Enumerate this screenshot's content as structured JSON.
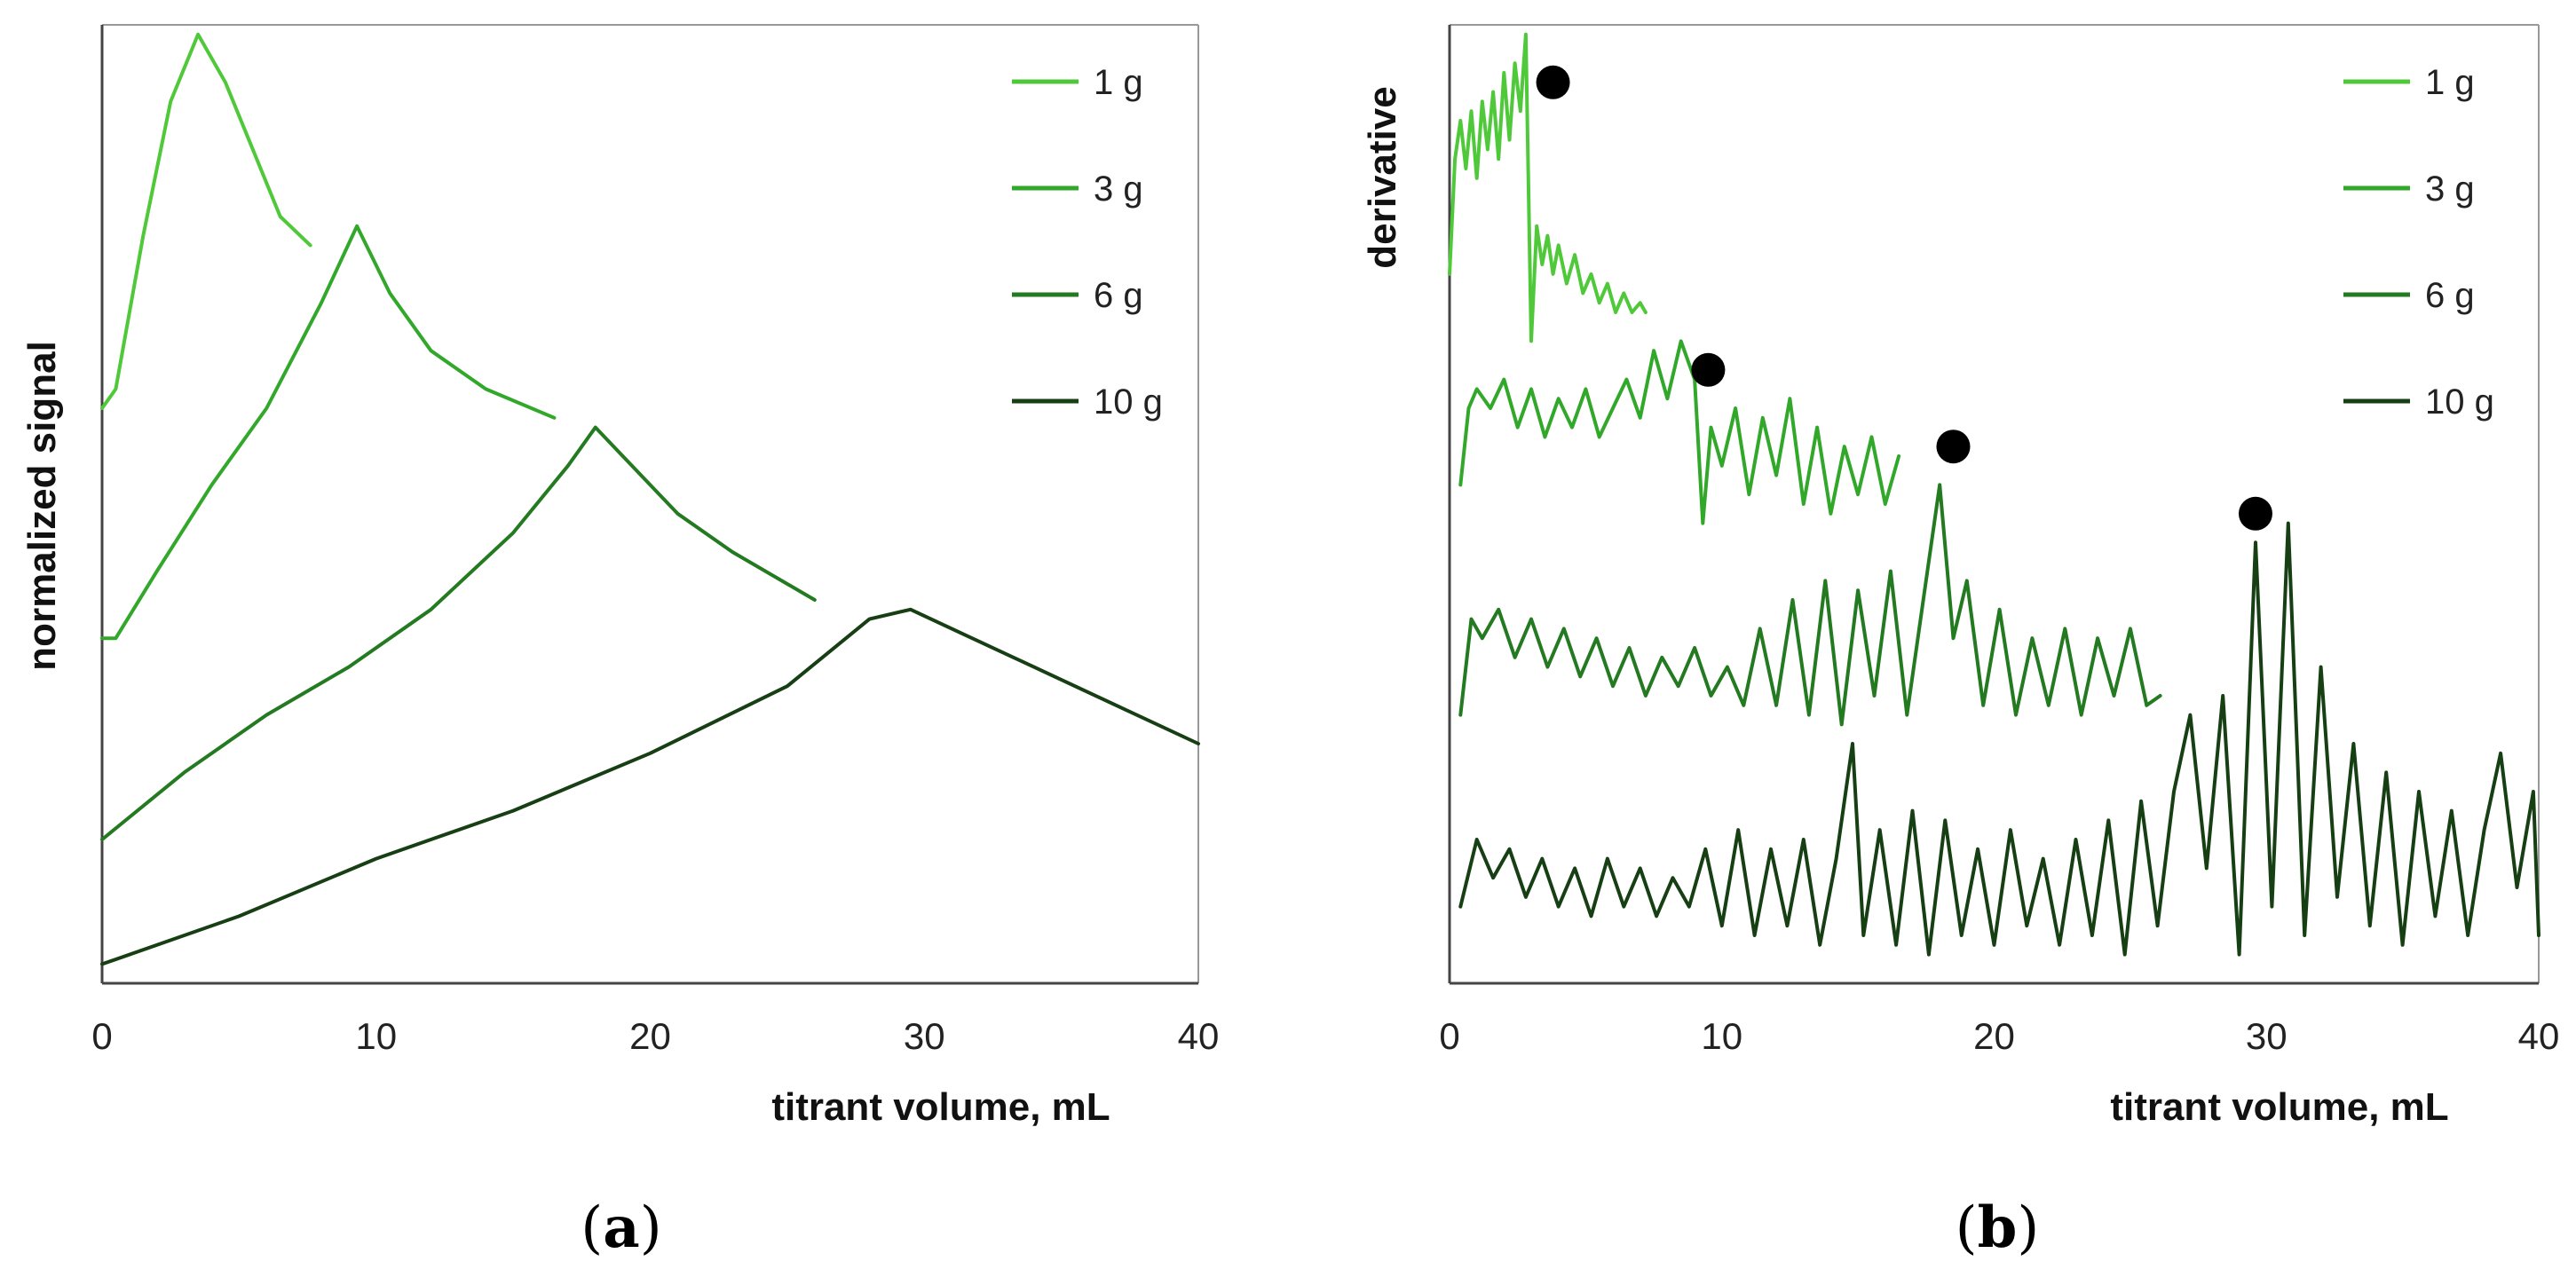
{
  "colors": {
    "1 g": "#4fc93a",
    "3 g": "#32a82a",
    "6 g": "#237a20",
    "10 g": "#173f14"
  },
  "chart_data": [
    {
      "panel": "a",
      "caption_letter": "a",
      "type": "line",
      "title": "",
      "xlabel": "titrant volume, mL",
      "ylabel": "normalized signal",
      "xlim": [
        0,
        40
      ],
      "ylim": [
        0,
        1
      ],
      "xticks": [
        0,
        10,
        20,
        30,
        40
      ],
      "yticks": [],
      "legend": [
        "1 g",
        "3 g",
        "6 g",
        "10 g"
      ],
      "legend_position": "top-right",
      "series": [
        {
          "name": "1 g",
          "x": [
            0,
            0.5,
            1.5,
            2.5,
            3.5,
            4.5,
            5.5,
            6.5,
            7.6
          ],
          "y": [
            0.6,
            0.62,
            0.78,
            0.92,
            0.99,
            0.94,
            0.87,
            0.8,
            0.77
          ]
        },
        {
          "name": "3 g",
          "x": [
            0,
            0.5,
            2,
            4,
            6,
            8,
            9.3,
            10.5,
            12,
            14,
            16.5
          ],
          "y": [
            0.36,
            0.36,
            0.43,
            0.52,
            0.6,
            0.71,
            0.79,
            0.72,
            0.66,
            0.62,
            0.59
          ]
        },
        {
          "name": "6 g",
          "x": [
            0,
            3,
            6,
            9,
            12,
            15,
            17,
            18,
            19,
            21,
            23,
            26
          ],
          "y": [
            0.15,
            0.22,
            0.28,
            0.33,
            0.39,
            0.47,
            0.54,
            0.58,
            0.55,
            0.49,
            0.45,
            0.4
          ]
        },
        {
          "name": "10 g",
          "x": [
            0,
            5,
            10,
            15,
            20,
            25,
            28,
            29.5,
            31,
            34,
            37,
            40
          ],
          "y": [
            0.02,
            0.07,
            0.13,
            0.18,
            0.24,
            0.31,
            0.38,
            0.39,
            0.37,
            0.33,
            0.29,
            0.25
          ]
        }
      ]
    },
    {
      "panel": "b",
      "caption_letter": "b",
      "type": "line",
      "title": "",
      "xlabel": "titrant volume, mL",
      "ylabel": "derivative",
      "xlim": [
        0,
        40
      ],
      "ylim": [
        0,
        1
      ],
      "xticks": [
        0,
        10,
        20,
        30,
        40
      ],
      "yticks": [],
      "legend": [
        "1 g",
        "3 g",
        "6 g",
        "10 g"
      ],
      "legend_position": "top-right",
      "series": [
        {
          "name": "1 g",
          "x": [
            0,
            0.2,
            0.4,
            0.6,
            0.8,
            1.0,
            1.2,
            1.4,
            1.6,
            1.8,
            2.0,
            2.2,
            2.4,
            2.6,
            2.8,
            3.0,
            3.2,
            3.4,
            3.6,
            3.8,
            4.0,
            4.3,
            4.6,
            4.9,
            5.2,
            5.5,
            5.8,
            6.1,
            6.4,
            6.7,
            7.0,
            7.2
          ],
          "y": [
            0.74,
            0.86,
            0.9,
            0.85,
            0.91,
            0.84,
            0.92,
            0.87,
            0.93,
            0.86,
            0.95,
            0.88,
            0.96,
            0.91,
            0.99,
            0.67,
            0.79,
            0.75,
            0.78,
            0.74,
            0.77,
            0.73,
            0.76,
            0.72,
            0.74,
            0.71,
            0.73,
            0.7,
            0.72,
            0.7,
            0.71,
            0.7
          ]
        },
        {
          "name": "3 g",
          "x": [
            0.4,
            0.7,
            1.0,
            1.5,
            2.0,
            2.5,
            3.0,
            3.5,
            4.0,
            4.5,
            5.0,
            5.5,
            6.0,
            6.5,
            7.0,
            7.5,
            8.0,
            8.5,
            9.0,
            9.3,
            9.6,
            10.0,
            10.5,
            11.0,
            11.5,
            12.0,
            12.5,
            13.0,
            13.5,
            14.0,
            14.5,
            15.0,
            15.5,
            16.0,
            16.5
          ],
          "y": [
            0.52,
            0.6,
            0.62,
            0.6,
            0.63,
            0.58,
            0.62,
            0.57,
            0.61,
            0.58,
            0.62,
            0.57,
            0.6,
            0.63,
            0.59,
            0.66,
            0.61,
            0.67,
            0.63,
            0.48,
            0.58,
            0.54,
            0.6,
            0.51,
            0.59,
            0.53,
            0.61,
            0.5,
            0.58,
            0.49,
            0.56,
            0.51,
            0.57,
            0.5,
            0.55
          ]
        },
        {
          "name": "6 g",
          "x": [
            0.4,
            0.8,
            1.2,
            1.8,
            2.4,
            3.0,
            3.6,
            4.2,
            4.8,
            5.4,
            6.0,
            6.6,
            7.2,
            7.8,
            8.4,
            9.0,
            9.6,
            10.2,
            10.8,
            11.4,
            12.0,
            12.6,
            13.2,
            13.8,
            14.4,
            15.0,
            15.6,
            16.2,
            16.8,
            17.4,
            18.0,
            18.5,
            19.0,
            19.6,
            20.2,
            20.8,
            21.4,
            22.0,
            22.6,
            23.2,
            23.8,
            24.4,
            25.0,
            25.6,
            26.1
          ],
          "y": [
            0.28,
            0.38,
            0.36,
            0.39,
            0.34,
            0.38,
            0.33,
            0.37,
            0.32,
            0.36,
            0.31,
            0.35,
            0.3,
            0.34,
            0.31,
            0.35,
            0.3,
            0.33,
            0.29,
            0.37,
            0.29,
            0.4,
            0.28,
            0.42,
            0.27,
            0.41,
            0.3,
            0.43,
            0.28,
            0.4,
            0.52,
            0.36,
            0.42,
            0.29,
            0.39,
            0.28,
            0.36,
            0.29,
            0.37,
            0.28,
            0.36,
            0.3,
            0.37,
            0.29,
            0.3
          ]
        },
        {
          "name": "10 g",
          "x": [
            0.4,
            1.0,
            1.6,
            2.2,
            2.8,
            3.4,
            4.0,
            4.6,
            5.2,
            5.8,
            6.4,
            7.0,
            7.6,
            8.2,
            8.8,
            9.4,
            10.0,
            10.6,
            11.2,
            11.8,
            12.4,
            13.0,
            13.6,
            14.2,
            14.8,
            15.2,
            15.8,
            16.4,
            17.0,
            17.6,
            18.2,
            18.8,
            19.4,
            20.0,
            20.6,
            21.2,
            21.8,
            22.4,
            23.0,
            23.6,
            24.2,
            24.8,
            25.4,
            26.0,
            26.6,
            27.2,
            27.8,
            28.4,
            29.0,
            29.6,
            30.2,
            30.8,
            31.4,
            32.0,
            32.6,
            33.2,
            33.8,
            34.4,
            35.0,
            35.6,
            36.2,
            36.8,
            37.4,
            38.0,
            38.6,
            39.2,
            39.8,
            40.0
          ],
          "y": [
            0.08,
            0.15,
            0.11,
            0.14,
            0.09,
            0.13,
            0.08,
            0.12,
            0.07,
            0.13,
            0.08,
            0.12,
            0.07,
            0.11,
            0.08,
            0.14,
            0.06,
            0.16,
            0.05,
            0.14,
            0.06,
            0.15,
            0.04,
            0.13,
            0.25,
            0.05,
            0.16,
            0.04,
            0.18,
            0.03,
            0.17,
            0.05,
            0.14,
            0.04,
            0.16,
            0.06,
            0.13,
            0.04,
            0.15,
            0.05,
            0.17,
            0.03,
            0.19,
            0.06,
            0.2,
            0.28,
            0.12,
            0.3,
            0.03,
            0.46,
            0.08,
            0.48,
            0.05,
            0.33,
            0.09,
            0.25,
            0.06,
            0.22,
            0.04,
            0.2,
            0.07,
            0.18,
            0.05,
            0.16,
            0.24,
            0.1,
            0.2,
            0.05
          ]
        }
      ],
      "markers": [
        {
          "series": "1 g",
          "x": 3.8,
          "y": 0.94
        },
        {
          "series": "3 g",
          "x": 9.5,
          "y": 0.64
        },
        {
          "series": "6 g",
          "x": 18.5,
          "y": 0.56
        },
        {
          "series": "10 g",
          "x": 29.6,
          "y": 0.49
        }
      ]
    }
  ]
}
